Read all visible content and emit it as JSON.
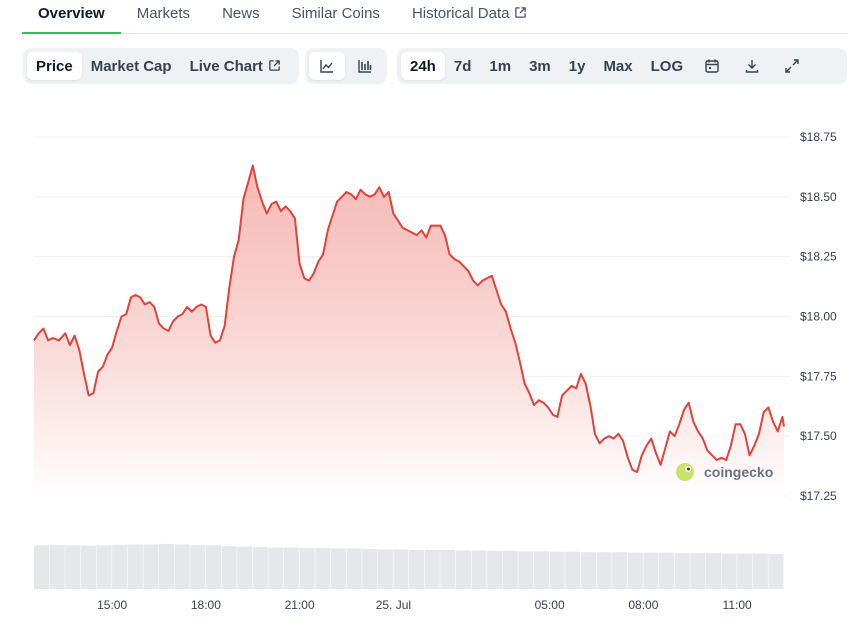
{
  "tabs": [
    {
      "label": "Overview",
      "active": true
    },
    {
      "label": "Markets",
      "active": false
    },
    {
      "label": "News",
      "active": false
    },
    {
      "label": "Similar Coins",
      "active": false
    },
    {
      "label": "Historical Data",
      "active": false,
      "external": true
    }
  ],
  "view_options": [
    {
      "label": "Price",
      "selected": true
    },
    {
      "label": "Market Cap",
      "selected": false
    },
    {
      "label": "Live Chart",
      "selected": false,
      "external": true
    }
  ],
  "chart_types": [
    {
      "icon": "line-chart-icon",
      "selected": true
    },
    {
      "icon": "ohlc-chart-icon",
      "selected": false
    }
  ],
  "ranges": [
    {
      "label": "24h",
      "selected": true
    },
    {
      "label": "7d",
      "selected": false
    },
    {
      "label": "1m",
      "selected": false
    },
    {
      "label": "3m",
      "selected": false
    },
    {
      "label": "1y",
      "selected": false
    },
    {
      "label": "Max",
      "selected": false
    },
    {
      "label": "LOG",
      "selected": false
    }
  ],
  "tool_icons": [
    "calendar-icon",
    "download-icon",
    "expand-icon"
  ],
  "watermark": "coingecko",
  "colors": {
    "line": "#e5403a",
    "fill_top": "#f3a39d",
    "fill_bottom": "#ffffff",
    "grid": "#eef0f3",
    "volume": "#e5e7eb",
    "active_tab_underline": "#22c55e",
    "toolbar_bg": "#eff2f5"
  },
  "chart_data": {
    "type": "area",
    "x_tick_labels": [
      "15:00",
      "18:00",
      "21:00",
      "25. Jul",
      "05:00",
      "08:00",
      "11:00"
    ],
    "y_tick_labels": [
      "$18.75",
      "$18.50",
      "$18.25",
      "$18.00",
      "$17.75",
      "$17.50",
      "$17.25"
    ],
    "y_ticks": [
      18.75,
      18.5,
      18.25,
      18.0,
      17.75,
      17.5,
      17.25
    ],
    "ylim": [
      17.25,
      18.75
    ],
    "x_ticks_hours": [
      2.5,
      5.5,
      8.5,
      11.5,
      16.5,
      19.5,
      22.5
    ],
    "x_range_hours": [
      0,
      24
    ],
    "grid": true,
    "title": "",
    "xlabel": "",
    "ylabel": "",
    "series": [
      {
        "x_hours": [
          0.0,
          0.15,
          0.3,
          0.45,
          0.6,
          0.8,
          1.0,
          1.15,
          1.3,
          1.45,
          1.6,
          1.75,
          1.9,
          2.05,
          2.2,
          2.35,
          2.5,
          2.65,
          2.8,
          2.95,
          3.1,
          3.25,
          3.4,
          3.55,
          3.7,
          3.85,
          4.0,
          4.15,
          4.3,
          4.45,
          4.6,
          4.75,
          4.9,
          5.05,
          5.2,
          5.35,
          5.5,
          5.65,
          5.8,
          5.95,
          6.1,
          6.25,
          6.4,
          6.55,
          6.7,
          6.85,
          7.0,
          7.15,
          7.3,
          7.45,
          7.6,
          7.75,
          7.9,
          8.05,
          8.2,
          8.35,
          8.5,
          8.65,
          8.8,
          8.95,
          9.1,
          9.25,
          9.4,
          9.55,
          9.7,
          9.85,
          10.0,
          10.15,
          10.3,
          10.45,
          10.6,
          10.75,
          10.9,
          11.05,
          11.2,
          11.35,
          11.5,
          11.65,
          11.8,
          11.95,
          12.1,
          12.25,
          12.4,
          12.55,
          12.7,
          12.85,
          13.0,
          13.15,
          13.3,
          13.45,
          13.6,
          13.75,
          13.9,
          14.05,
          14.2,
          14.35,
          14.5,
          14.65,
          14.8,
          14.95,
          15.1,
          15.25,
          15.4,
          15.55,
          15.7,
          15.85,
          16.0,
          16.15,
          16.3,
          16.45,
          16.6,
          16.75,
          16.9,
          17.05,
          17.2,
          17.35,
          17.5,
          17.65,
          17.8,
          17.95,
          18.1,
          18.25,
          18.4,
          18.55,
          18.7,
          18.85,
          19.0,
          19.15,
          19.3,
          19.45,
          19.6,
          19.75,
          19.9,
          20.05,
          20.2,
          20.35,
          20.5,
          20.65,
          20.8,
          20.95,
          21.1,
          21.25,
          21.4,
          21.55,
          21.7,
          21.85,
          22.0,
          22.15,
          22.3,
          22.45,
          22.6,
          22.75,
          22.9,
          23.05,
          23.2,
          23.35,
          23.5,
          23.65,
          23.8,
          23.95,
          24.0
        ],
        "values": [
          17.9,
          17.93,
          17.95,
          17.9,
          17.91,
          17.9,
          17.93,
          17.88,
          17.92,
          17.86,
          17.76,
          17.67,
          17.68,
          17.77,
          17.79,
          17.84,
          17.87,
          17.94,
          18.0,
          18.01,
          18.08,
          18.09,
          18.08,
          18.05,
          18.06,
          18.04,
          17.97,
          17.95,
          17.94,
          17.98,
          18.0,
          18.01,
          18.04,
          18.02,
          18.04,
          18.05,
          18.04,
          17.92,
          17.89,
          17.9,
          17.96,
          18.12,
          18.25,
          18.32,
          18.49,
          18.56,
          18.63,
          18.54,
          18.48,
          18.43,
          18.47,
          18.48,
          18.44,
          18.46,
          18.44,
          18.41,
          18.22,
          18.16,
          18.15,
          18.18,
          18.23,
          18.26,
          18.36,
          18.42,
          18.48,
          18.5,
          18.52,
          18.51,
          18.49,
          18.53,
          18.51,
          18.5,
          18.51,
          18.54,
          18.5,
          18.52,
          18.43,
          18.4,
          18.37,
          18.36,
          18.35,
          18.34,
          18.36,
          18.33,
          18.38,
          18.38,
          18.38,
          18.34,
          18.26,
          18.24,
          18.23,
          18.21,
          18.19,
          18.15,
          18.13,
          18.15,
          18.16,
          18.17,
          18.11,
          18.05,
          18.02,
          17.95,
          17.89,
          17.81,
          17.72,
          17.68,
          17.63,
          17.65,
          17.64,
          17.62,
          17.59,
          17.58,
          17.67,
          17.69,
          17.71,
          17.7,
          17.76,
          17.72,
          17.63,
          17.51,
          17.47,
          17.49,
          17.5,
          17.49,
          17.51,
          17.48,
          17.41,
          17.36,
          17.35,
          17.42,
          17.46,
          17.49,
          17.43,
          17.38,
          17.45,
          17.52,
          17.5,
          17.55,
          17.61,
          17.64,
          17.56,
          17.52,
          17.49,
          17.44,
          17.42,
          17.4,
          17.41,
          17.4,
          17.46,
          17.55,
          17.55,
          17.51,
          17.42,
          17.46,
          17.51,
          17.6,
          17.62,
          17.56,
          17.52,
          17.58,
          17.54
        ]
      }
    ],
    "volume": {
      "x_hours": [
        0.0,
        0.5,
        1.0,
        1.5,
        2.0,
        2.5,
        3.0,
        3.5,
        4.0,
        4.5,
        5.0,
        5.5,
        6.0,
        6.5,
        7.0,
        7.5,
        8.0,
        8.5,
        9.0,
        9.5,
        10.0,
        10.5,
        11.0,
        11.5,
        12.0,
        12.5,
        13.0,
        13.5,
        14.0,
        14.5,
        15.0,
        15.5,
        16.0,
        16.5,
        17.0,
        17.5,
        18.0,
        18.5,
        19.0,
        19.5,
        20.0,
        20.5,
        21.0,
        21.5,
        22.0,
        22.5,
        23.0,
        23.5,
        24.0
      ],
      "relative_values": [
        0.95,
        0.96,
        0.95,
        0.94,
        0.95,
        0.96,
        0.97,
        0.97,
        0.98,
        0.97,
        0.96,
        0.95,
        0.93,
        0.92,
        0.91,
        0.9,
        0.9,
        0.89,
        0.89,
        0.88,
        0.88,
        0.87,
        0.86,
        0.86,
        0.85,
        0.85,
        0.85,
        0.84,
        0.84,
        0.83,
        0.83,
        0.82,
        0.82,
        0.81,
        0.81,
        0.8,
        0.8,
        0.8,
        0.79,
        0.79,
        0.79,
        0.78,
        0.78,
        0.78,
        0.77,
        0.77,
        0.77,
        0.76,
        0.76
      ]
    }
  }
}
